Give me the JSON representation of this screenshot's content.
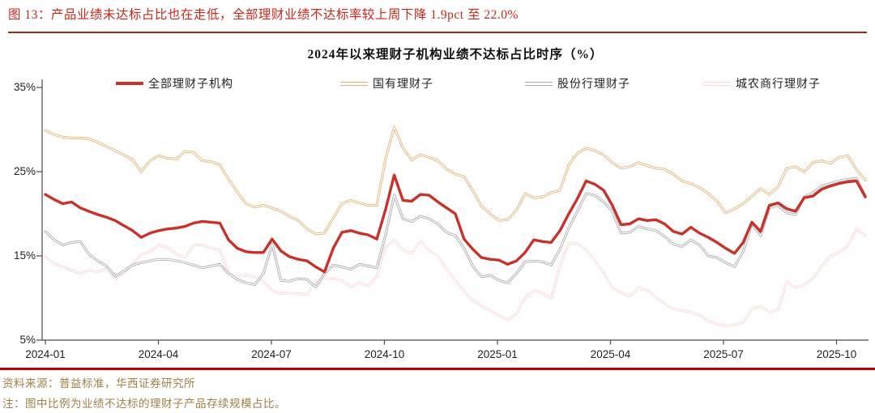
{
  "header": {
    "caption": "图 13：产品业绩未达标占比也在走低，全部理财业绩不达标率较上周下降 1.9pct 至 22.0%"
  },
  "footer": {
    "source": "资料来源：普益标准，华西证券研究所",
    "note": "注：图中比例为业绩不达标的理财子产品存续规模占比。"
  },
  "accent_colors": {
    "header_text_red": "#c7271e",
    "header_rule_red": "#9e2a20",
    "bottom_rule_red": "#c00000",
    "note_text_tan": "#a07f48"
  },
  "chart_data": {
    "type": "line",
    "title": "2024年以来理财子机构业绩不达标占比时序（%）",
    "ylabel": "",
    "xlabel": "",
    "ylim": [
      5,
      35
    ],
    "y_tick_labels": [
      "35%",
      "25%",
      "15%",
      "5%"
    ],
    "y_tick_values": [
      35,
      25,
      15,
      5
    ],
    "x_tick_labels": [
      "2024-01",
      "2024-04",
      "2024-07",
      "2024-10",
      "2025-01",
      "2025-04",
      "2025-07",
      "2025-10"
    ],
    "grid": false,
    "legend_position": "top",
    "frequency": "weekly",
    "series": [
      {
        "name": "全部理财子机构",
        "color": "#c8322b",
        "style": "solid-thick",
        "values": [
          22.3,
          21.7,
          21.2,
          21.4,
          20.7,
          20.3,
          19.9,
          19.6,
          19.2,
          18.6,
          18.0,
          17.2,
          17.7,
          18.0,
          18.2,
          18.3,
          18.5,
          18.9,
          19.1,
          19.0,
          18.9,
          16.9,
          15.9,
          15.5,
          15.4,
          15.4,
          17.0,
          15.6,
          14.9,
          14.6,
          14.4,
          13.7,
          13.1,
          15.9,
          17.8,
          18.0,
          17.7,
          17.5,
          17.0,
          20.5,
          24.6,
          21.6,
          21.5,
          22.3,
          22.2,
          21.4,
          20.7,
          20.0,
          17.0,
          15.8,
          14.8,
          14.6,
          14.5,
          14.0,
          14.4,
          15.4,
          16.9,
          16.7,
          16.6,
          18.0,
          20.0,
          21.8,
          23.9,
          23.5,
          22.8,
          21.0,
          18.7,
          18.8,
          19.4,
          19.2,
          19.3,
          18.8,
          17.9,
          17.6,
          18.4,
          17.7,
          17.2,
          16.6,
          15.9,
          15.3,
          16.6,
          19.0,
          17.9,
          21.0,
          21.3,
          20.6,
          20.3,
          21.9,
          22.1,
          22.9,
          23.3,
          23.6,
          23.8,
          23.9,
          22.0
        ]
      },
      {
        "name": "国有理财子",
        "color": "#ddb376",
        "style": "hollow",
        "values": [
          29.9,
          29.4,
          29.1,
          29.0,
          29.0,
          28.9,
          28.5,
          28.0,
          27.5,
          27.0,
          26.4,
          25.0,
          26.3,
          26.9,
          26.6,
          26.5,
          27.4,
          27.3,
          26.3,
          26.2,
          25.8,
          24.1,
          22.6,
          21.2,
          20.8,
          21.0,
          20.7,
          20.3,
          19.7,
          19.2,
          18.2,
          17.6,
          17.7,
          19.5,
          21.2,
          21.6,
          21.3,
          21.0,
          21.0,
          26.5,
          30.3,
          27.8,
          26.4,
          27.0,
          26.7,
          26.3,
          25.3,
          24.7,
          24.4,
          22.8,
          20.9,
          20.0,
          19.2,
          19.3,
          20.4,
          22.4,
          21.9,
          22.0,
          22.5,
          22.8,
          25.8,
          27.2,
          27.8,
          27.5,
          27.0,
          26.1,
          25.4,
          25.6,
          26.1,
          25.7,
          25.4,
          25.3,
          24.7,
          23.9,
          23.6,
          23.1,
          22.4,
          21.5,
          20.1,
          20.6,
          21.2,
          22.1,
          23.0,
          22.3,
          23.2,
          25.4,
          25.6,
          25.0,
          26.1,
          26.3,
          26.0,
          26.7,
          26.9,
          25.2,
          24.0
        ]
      },
      {
        "name": "股份行理财子",
        "color": "#a9a9a9",
        "style": "hollow",
        "values": [
          17.9,
          16.9,
          16.3,
          16.6,
          16.7,
          15.2,
          14.4,
          13.8,
          12.6,
          13.2,
          13.9,
          14.2,
          14.4,
          14.6,
          14.6,
          14.4,
          14.2,
          13.9,
          13.6,
          13.8,
          14.0,
          12.9,
          12.2,
          11.8,
          11.6,
          12.9,
          16.4,
          12.1,
          12.0,
          12.3,
          12.2,
          11.3,
          12.9,
          13.9,
          13.7,
          13.4,
          14.0,
          13.8,
          13.6,
          17.5,
          22.2,
          19.4,
          19.1,
          19.7,
          19.4,
          18.8,
          17.8,
          17.4,
          15.9,
          13.8,
          12.5,
          12.7,
          12.1,
          11.8,
          12.9,
          14.3,
          14.4,
          14.3,
          13.9,
          15.8,
          18.3,
          20.3,
          22.4,
          22.2,
          21.4,
          20.3,
          17.7,
          17.8,
          18.5,
          18.2,
          18.0,
          17.3,
          16.4,
          16.1,
          16.9,
          16.3,
          15.0,
          14.8,
          14.2,
          13.7,
          15.5,
          18.8,
          17.4,
          20.7,
          21.0,
          20.1,
          19.9,
          22.0,
          22.5,
          23.3,
          23.6,
          23.9,
          24.1,
          24.2,
          22.2
        ]
      },
      {
        "name": "城农商行理财子",
        "color": "#f7d7d4",
        "style": "hollow",
        "values": [
          14.9,
          14.1,
          13.7,
          13.3,
          12.9,
          13.3,
          13.1,
          13.5,
          12.2,
          13.0,
          14.0,
          15.2,
          15.5,
          16.3,
          16.0,
          15.2,
          14.8,
          16.3,
          16.3,
          15.9,
          15.7,
          12.9,
          12.5,
          12.7,
          12.5,
          12.0,
          10.9,
          10.5,
          10.6,
          10.5,
          10.4,
          12.0,
          12.3,
          12.3,
          12.1,
          11.3,
          11.8,
          11.4,
          12.6,
          16.0,
          16.9,
          15.7,
          15.3,
          16.8,
          15.6,
          15.0,
          13.4,
          12.1,
          10.8,
          9.7,
          9.1,
          8.5,
          7.9,
          7.4,
          8.1,
          10.0,
          10.9,
          10.6,
          9.9,
          13.8,
          16.5,
          16.5,
          15.7,
          14.4,
          13.0,
          11.2,
          10.6,
          10.2,
          11.2,
          10.9,
          10.1,
          9.3,
          8.7,
          8.5,
          8.3,
          8.0,
          7.3,
          6.9,
          6.7,
          6.8,
          7.1,
          8.7,
          9.0,
          8.3,
          8.6,
          11.9,
          11.2,
          11.6,
          12.3,
          13.8,
          15.0,
          15.4,
          16.2,
          18.2,
          17.4
        ]
      }
    ]
  }
}
